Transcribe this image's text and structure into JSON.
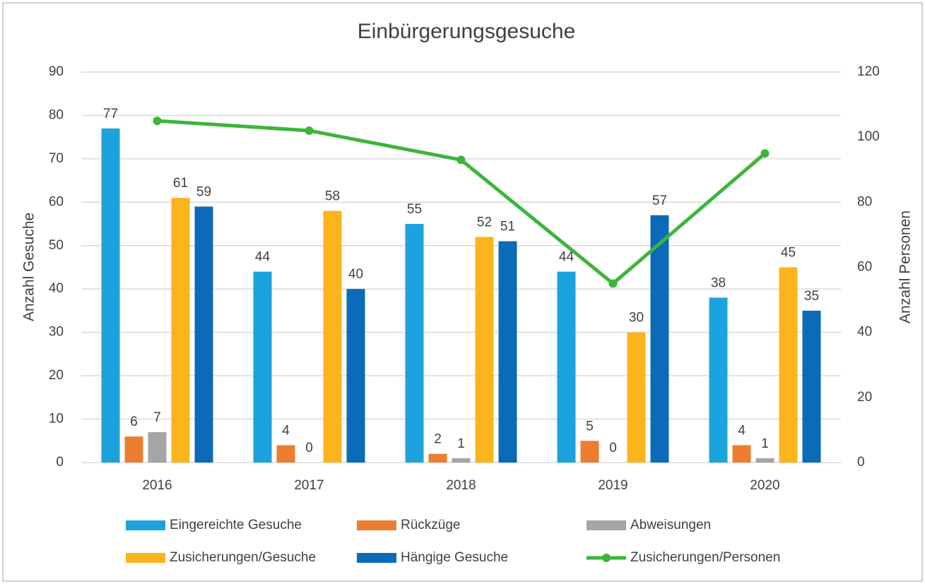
{
  "chart_data": {
    "type": "bar",
    "title": "Einbürgerungsgesuche",
    "categories": [
      "2016",
      "2017",
      "2018",
      "2019",
      "2020"
    ],
    "ylabel": "Anzahl Gesuche",
    "y2label": "Anzahl Personen",
    "ylim": [
      0,
      90
    ],
    "yticks": [
      0,
      10,
      20,
      30,
      40,
      50,
      60,
      70,
      80,
      90
    ],
    "y2lim": [
      0,
      120
    ],
    "y2ticks": [
      0,
      20,
      40,
      60,
      80,
      100,
      120
    ],
    "grid": true,
    "legend": "bottom",
    "series": [
      {
        "name": "Eingereichte Gesuche",
        "color": "#1ca3de",
        "values": [
          77,
          44,
          55,
          44,
          38
        ]
      },
      {
        "name": "Rückzüge",
        "color": "#ed7d31",
        "values": [
          6,
          4,
          2,
          5,
          4
        ]
      },
      {
        "name": "Abweisungen",
        "color": "#a5a5a5",
        "values": [
          7,
          0,
          1,
          0,
          1
        ]
      },
      {
        "name": "Zusicherungen/Gesuche",
        "color": "#fbb41c",
        "values": [
          61,
          58,
          52,
          30,
          45
        ]
      },
      {
        "name": "Hängige Gesuche",
        "color": "#0b6bb8",
        "values": [
          59,
          40,
          51,
          57,
          35
        ]
      },
      {
        "name": "Zusicherungen/Personen",
        "color": "#3cb53a",
        "type": "line",
        "axis": "y2",
        "values": [
          105,
          102,
          93,
          55,
          95
        ]
      }
    ]
  }
}
